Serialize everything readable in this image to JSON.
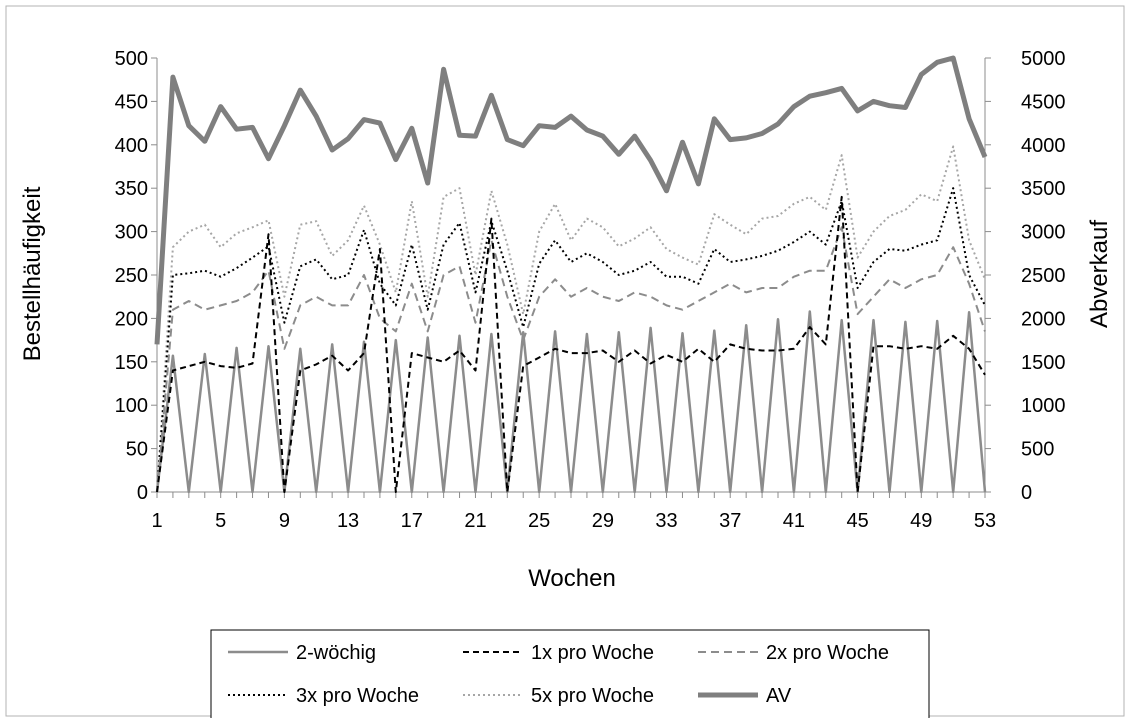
{
  "chart_data": {
    "type": "line",
    "xlabel": "Wochen",
    "ylabel": "Bestellhäufigkeit",
    "y2label": "Abverkauf",
    "ylim": [
      0,
      500
    ],
    "y2lim": [
      0,
      5000
    ],
    "xlim": [
      1,
      53
    ],
    "yticks": [
      "0",
      "50",
      "100",
      "150",
      "200",
      "250",
      "300",
      "350",
      "400",
      "450",
      "500"
    ],
    "y2ticks": [
      "0",
      "500",
      "1000",
      "1500",
      "2000",
      "2500",
      "3000",
      "3500",
      "4000",
      "4500",
      "5000"
    ],
    "xticks": [
      "1",
      "5",
      "9",
      "13",
      "17",
      "21",
      "25",
      "29",
      "33",
      "37",
      "41",
      "45",
      "49",
      "53"
    ],
    "grid": false,
    "legend_position": "bottom",
    "x": [
      1,
      2,
      3,
      4,
      5,
      6,
      7,
      8,
      9,
      10,
      11,
      12,
      13,
      14,
      15,
      16,
      17,
      18,
      19,
      20,
      21,
      22,
      23,
      24,
      25,
      26,
      27,
      28,
      29,
      30,
      31,
      32,
      33,
      34,
      35,
      36,
      37,
      38,
      39,
      40,
      41,
      42,
      43,
      44,
      45,
      46,
      47,
      48,
      49,
      50,
      51,
      52,
      53
    ],
    "series": [
      {
        "name": "2-wöchig",
        "axis": "left",
        "color": "#8c8c8c",
        "dash": "solid",
        "width": 2.5,
        "values": [
          0,
          157,
          0,
          159,
          0,
          166,
          0,
          168,
          0,
          165,
          0,
          170,
          0,
          173,
          0,
          175,
          0,
          178,
          0,
          180,
          0,
          182,
          0,
          184,
          0,
          185,
          0,
          182,
          0,
          184,
          0,
          189,
          0,
          183,
          0,
          186,
          0,
          192,
          0,
          199,
          0,
          208,
          0,
          198,
          0,
          198,
          0,
          196,
          0,
          197,
          0,
          207,
          0
        ]
      },
      {
        "name": "1x pro Woche",
        "axis": "left",
        "color": "#000000",
        "dash": "6,4",
        "width": 2,
        "values": [
          0,
          140,
          145,
          150,
          145,
          143,
          148,
          297,
          0,
          140,
          147,
          157,
          140,
          160,
          280,
          0,
          160,
          155,
          150,
          163,
          140,
          315,
          0,
          145,
          155,
          165,
          160,
          160,
          163,
          150,
          163,
          148,
          158,
          150,
          165,
          150,
          170,
          165,
          163,
          163,
          165,
          190,
          170,
          340,
          0,
          168,
          168,
          165,
          168,
          165,
          180,
          165,
          135
        ]
      },
      {
        "name": "2x pro Woche",
        "axis": "left",
        "color": "#8c8c8c",
        "dash": "8,5",
        "width": 2,
        "values": [
          0,
          210,
          220,
          210,
          215,
          220,
          230,
          255,
          165,
          215,
          225,
          215,
          215,
          250,
          200,
          185,
          240,
          185,
          250,
          260,
          195,
          290,
          225,
          175,
          225,
          245,
          225,
          235,
          225,
          220,
          230,
          225,
          215,
          210,
          220,
          230,
          240,
          230,
          235,
          235,
          248,
          255,
          255,
          305,
          205,
          225,
          245,
          235,
          245,
          250,
          282,
          240,
          185
        ]
      },
      {
        "name": "3x pro Woche",
        "axis": "left",
        "color": "#000000",
        "dash": "2,3",
        "width": 2,
        "values": [
          0,
          250,
          252,
          255,
          248,
          258,
          270,
          283,
          195,
          260,
          268,
          245,
          250,
          302,
          240,
          215,
          285,
          210,
          285,
          310,
          230,
          312,
          255,
          190,
          263,
          290,
          265,
          275,
          265,
          250,
          255,
          265,
          248,
          248,
          240,
          280,
          265,
          268,
          272,
          278,
          288,
          300,
          285,
          335,
          235,
          265,
          280,
          278,
          285,
          290,
          350,
          250,
          215
        ]
      },
      {
        "name": "5x pro Woche",
        "axis": "left",
        "color": "#a6a6a6",
        "dash": "2,3",
        "width": 2,
        "values": [
          0,
          282,
          300,
          308,
          282,
          298,
          305,
          313,
          225,
          308,
          312,
          272,
          290,
          330,
          285,
          230,
          335,
          225,
          340,
          350,
          250,
          347,
          285,
          205,
          300,
          332,
          290,
          315,
          305,
          283,
          292,
          305,
          280,
          270,
          262,
          320,
          308,
          297,
          315,
          318,
          332,
          340,
          325,
          388,
          270,
          300,
          318,
          325,
          343,
          335,
          398,
          290,
          245
        ]
      },
      {
        "name": "AV",
        "axis": "right",
        "color": "#7f7f7f",
        "dash": "solid",
        "width": 5,
        "values": [
          1700,
          4780,
          4220,
          4040,
          4440,
          4180,
          4200,
          3840,
          4220,
          4630,
          4330,
          3940,
          4070,
          4290,
          4250,
          3830,
          4190,
          3560,
          4870,
          4110,
          4100,
          4570,
          4060,
          3990,
          4220,
          4200,
          4330,
          4170,
          4100,
          3890,
          4100,
          3820,
          3470,
          4030,
          3550,
          4300,
          4060,
          4080,
          4130,
          4240,
          4440,
          4560,
          4600,
          4650,
          4390,
          4500,
          4450,
          4430,
          4810,
          4950,
          5000,
          4300,
          3860
        ]
      }
    ]
  }
}
